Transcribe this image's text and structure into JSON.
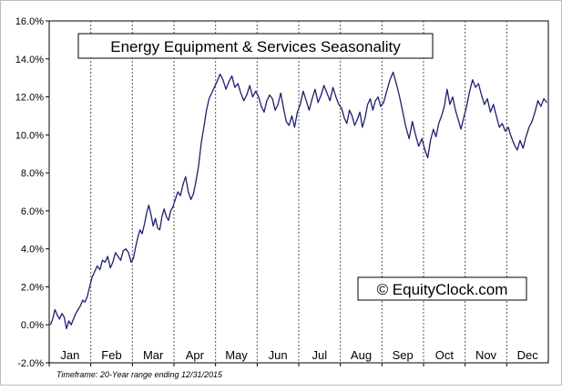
{
  "chart_data": {
    "type": "line",
    "title": "Energy Equipment & Services Seasonality",
    "xlabel": "",
    "ylabel": "",
    "months": [
      "Jan",
      "Feb",
      "Mar",
      "Apr",
      "May",
      "Jun",
      "Jul",
      "Aug",
      "Sep",
      "Oct",
      "Nov",
      "Dec"
    ],
    "ylim": [
      -2,
      16
    ],
    "yticks": [
      -2,
      0,
      2,
      4,
      6,
      8,
      10,
      12,
      14,
      16
    ],
    "ytick_labels": [
      "-2.0%",
      "0.0%",
      "2.0%",
      "4.0%",
      "6.0%",
      "8.0%",
      "10.0%",
      "12.0%",
      "14.0%",
      "16.0%"
    ],
    "grid": "vertical dotted month separators",
    "line_color": "#1c1c8c",
    "series": [
      {
        "values_by_month": [
          [
            0,
            0.3,
            0.8,
            0.5,
            0.3,
            0.6,
            0.4,
            -0.2,
            0.2,
            0.0,
            0.3,
            0.6,
            0.8,
            1.0,
            1.3,
            1.2,
            1.5,
            2.0
          ],
          [
            2.5,
            2.8,
            3.1,
            2.9,
            3.4,
            3.3,
            3.6,
            3.0,
            3.3,
            3.8,
            3.6,
            3.4,
            3.9,
            4.0,
            3.8,
            3.3
          ],
          [
            3.5,
            4.1,
            4.6,
            5.0,
            4.8,
            5.3,
            5.9,
            6.3,
            5.8,
            5.2,
            5.6,
            5.1,
            5.0,
            5.7,
            6.1,
            5.7,
            5.5,
            6.0,
            6.2
          ],
          [
            6.6,
            7.0,
            6.8,
            7.4,
            7.8,
            7.0,
            6.6,
            6.9,
            7.6,
            8.4,
            9.6,
            10.4,
            11.3,
            11.9,
            12.2,
            12.5
          ],
          [
            12.8,
            13.2,
            12.9,
            12.4,
            12.8,
            13.1,
            12.5,
            12.7,
            12.2,
            11.8,
            12.1,
            12.6,
            12.0,
            12.3
          ],
          [
            12.0,
            11.5,
            11.2,
            11.8,
            12.1,
            11.9,
            11.3,
            11.6,
            12.2,
            11.4,
            10.7,
            10.5,
            11.0,
            10.4,
            11.2
          ],
          [
            11.6,
            12.3,
            11.8,
            11.3,
            11.9,
            12.4,
            11.7,
            12.1,
            12.6,
            12.2,
            11.8,
            12.5,
            12.0,
            11.6
          ],
          [
            11.4,
            10.9,
            10.6,
            11.3,
            11.0,
            10.5,
            10.8,
            11.2,
            10.4,
            10.9,
            11.6,
            11.9,
            11.3,
            11.8,
            12.0,
            11.5
          ],
          [
            11.7,
            12.3,
            12.9,
            13.3,
            12.7,
            12.0,
            11.2,
            10.4,
            9.8,
            10.7,
            10.0,
            9.4,
            9.8
          ],
          [
            9.2,
            8.8,
            9.7,
            10.3,
            9.9,
            10.6,
            11.0,
            11.5,
            12.4,
            11.6,
            12.0,
            11.3,
            10.8,
            10.3,
            10.9
          ],
          [
            11.5,
            12.3,
            12.9,
            12.5,
            12.7,
            12.1,
            11.6,
            11.9,
            11.2,
            11.6,
            11.0,
            10.4,
            10.6,
            10.2
          ],
          [
            10.4,
            9.9,
            9.5,
            9.2,
            9.7,
            9.3,
            9.9,
            10.4,
            10.7,
            11.2,
            11.8,
            11.5,
            11.9,
            11.7
          ]
        ]
      }
    ]
  },
  "title_box": {
    "title": "Energy Equipment & Services Seasonality"
  },
  "watermark": {
    "text": "© EquityClock.com"
  },
  "footer": {
    "timeframe": "Timeframe: 20-Year range ending 12/31/2015"
  }
}
